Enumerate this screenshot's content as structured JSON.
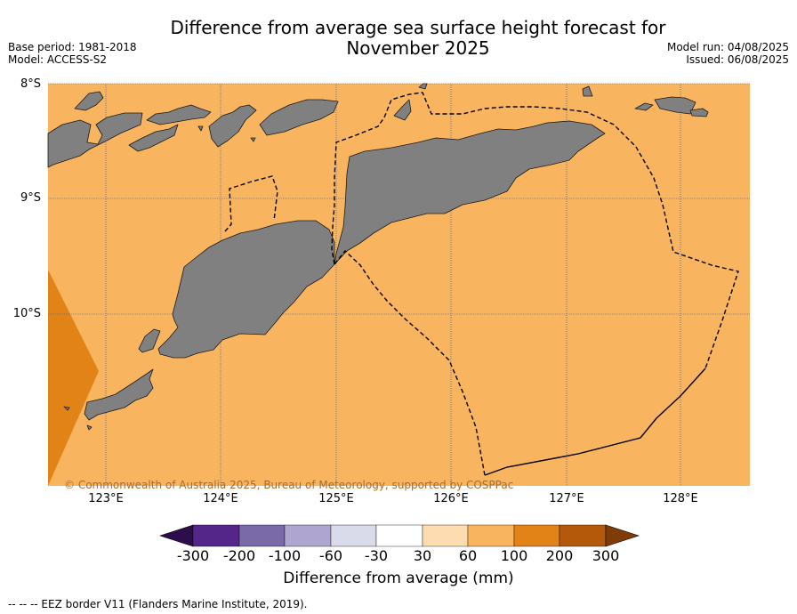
{
  "header": {
    "title_line1": "Difference from average sea surface height forecast for",
    "title_line2": "November 2025",
    "base_period": "Base period: 1981-2018",
    "model": "Model: ACCESS-S2",
    "model_run": "Model run: 04/08/2025",
    "issued": "Issued: 06/08/2025"
  },
  "map": {
    "lat_labels": [
      "8°S",
      "9°S",
      "10°S"
    ],
    "lon_labels": [
      "123°E",
      "124°E",
      "125°E",
      "126°E",
      "127°E",
      "128°E"
    ],
    "copyright": "© Commonwealth of Australia 2025, Bureau of Meteorology, supported by COSPPac",
    "colors": {
      "ocean_30_60": "#f9b45f",
      "ocean_100_200": "#e28317",
      "land": "#808080",
      "grid": "#555555"
    }
  },
  "colorbar": {
    "label": "Difference from average (mm)",
    "ticks": [
      "-300",
      "-200",
      "-100",
      "-60",
      "-30",
      "30",
      "60",
      "100",
      "200",
      "300"
    ],
    "colors": [
      "#2e0e4a",
      "#542689",
      "#7a6aa8",
      "#aea6d0",
      "#d9dbea",
      "#ffffff",
      "#fddcb1",
      "#f9b45f",
      "#e28317",
      "#b45909",
      "#7f3b08"
    ]
  },
  "footnote": "--  --  -- EEZ border V11 (Flanders Marine Institute, 2019)."
}
